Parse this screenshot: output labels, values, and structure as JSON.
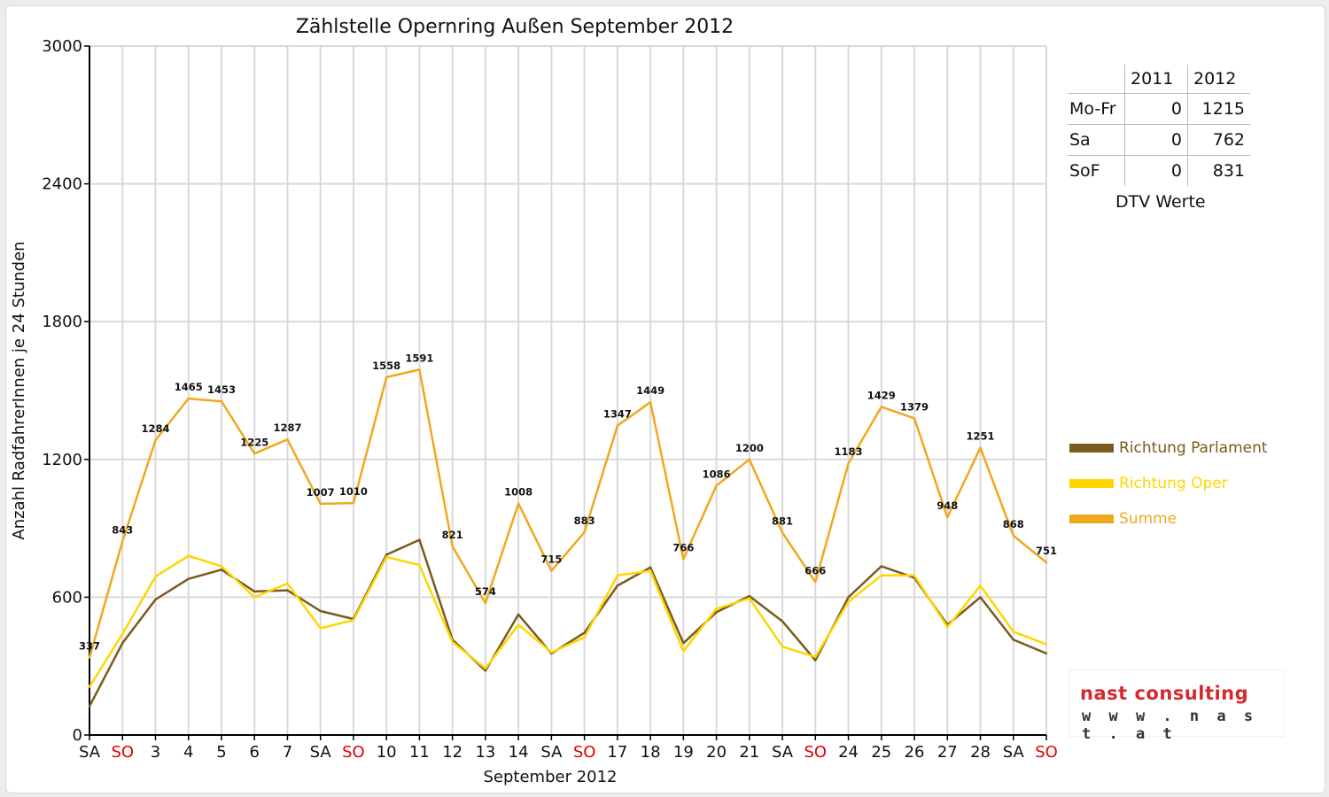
{
  "chart_data": {
    "type": "line",
    "title": "Zählstelle Opernring Außen September 2012",
    "xlabel": "September 2012",
    "ylabel": "Anzahl RadfahrerInnen je 24 Stunden",
    "ylim": [
      0,
      3000
    ],
    "yticks": [
      0,
      600,
      1200,
      1800,
      2400,
      3000
    ],
    "grid": true,
    "legend_position": "right",
    "categories": [
      "SA",
      "SO",
      "3",
      "4",
      "5",
      "6",
      "7",
      "SA",
      "SO",
      "10",
      "11",
      "12",
      "13",
      "14",
      "SA",
      "SO",
      "17",
      "18",
      "19",
      "20",
      "21",
      "SA",
      "SO",
      "24",
      "25",
      "26",
      "27",
      "28",
      "SA",
      "SO"
    ],
    "weekend_color": "#e00000",
    "weekend_indices": [
      1,
      8,
      15,
      22,
      29
    ],
    "series": [
      {
        "name": "Richtung Parlament",
        "color": "#7a5a1e",
        "values": [
          125,
          400,
          590,
          680,
          720,
          625,
          630,
          540,
          505,
          785,
          850,
          415,
          280,
          525,
          355,
          445,
          650,
          730,
          400,
          535,
          605,
          495,
          325,
          600,
          735,
          685,
          480,
          600,
          415,
          355
        ]
      },
      {
        "name": "Richtung Oper",
        "color": "#ffd600",
        "values": [
          210,
          440,
          690,
          780,
          735,
          600,
          660,
          465,
          500,
          775,
          740,
          405,
          290,
          480,
          360,
          425,
          695,
          715,
          365,
          550,
          595,
          385,
          340,
          580,
          695,
          695,
          470,
          650,
          450,
          395
        ]
      },
      {
        "name": "Summe",
        "color": "#f0a81e",
        "values": [
          337,
          843,
          1284,
          1465,
          1453,
          1225,
          1287,
          1007,
          1010,
          1558,
          1591,
          821,
          574,
          1008,
          715,
          883,
          1347,
          1449,
          766,
          1086,
          1200,
          881,
          666,
          1183,
          1429,
          1379,
          948,
          1251,
          868,
          751
        ],
        "data_labels": [
          "337",
          "843",
          "1284",
          "1465",
          "1453",
          "1225",
          "1287",
          "1007",
          "1010",
          "1558",
          "1591",
          "821",
          "574",
          "1008",
          "715",
          "883",
          "1347",
          "1449",
          "766",
          "1086",
          "1200",
          "881",
          "666",
          "1183",
          "1429",
          "1379",
          "948",
          "1251",
          "868",
          "751"
        ]
      }
    ]
  },
  "dtv_table": {
    "caption": "DTV Werte",
    "headers": [
      "",
      "2011",
      "2012"
    ],
    "rows": [
      {
        "label": "Mo-Fr",
        "v2011": "0",
        "v2012": "1215"
      },
      {
        "label": "Sa",
        "v2011": "0",
        "v2012": "762"
      },
      {
        "label": "SoF",
        "v2011": "0",
        "v2012": "831"
      }
    ]
  },
  "logo": {
    "name": "nast consulting",
    "url": "w w w . n a s t . a t",
    "name_color": "#d7282f"
  }
}
